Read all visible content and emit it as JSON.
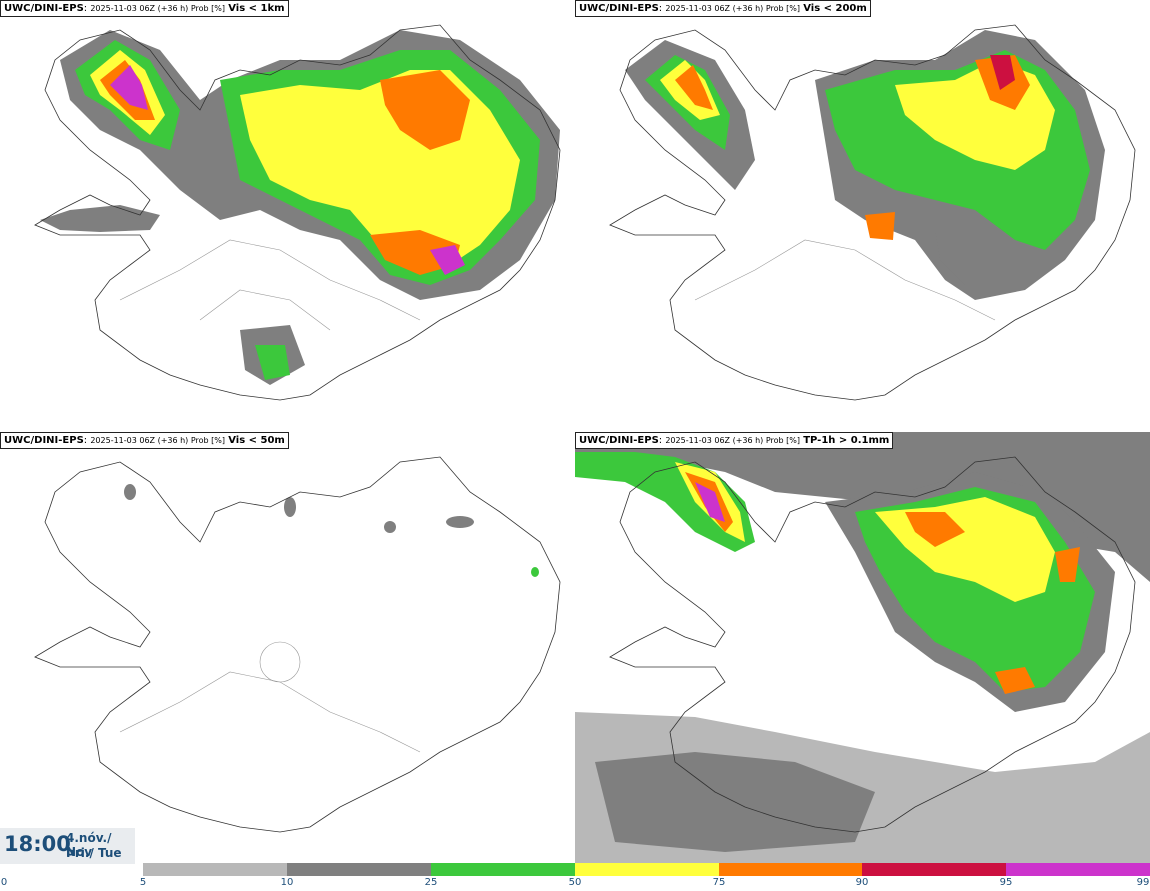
{
  "panels": [
    {
      "model": "UWC/DINI-EPS",
      "meta": "2025-11-03 06Z (+36 h) Prob [%]",
      "variable": "Vis < 1km"
    },
    {
      "model": "UWC/DINI-EPS",
      "meta": "2025-11-03 06Z (+36 h) Prob [%]",
      "variable": "Vis < 200m"
    },
    {
      "model": "UWC/DINI-EPS",
      "meta": "2025-11-03 06Z (+36 h) Prob [%]",
      "variable": "Vis < 50m"
    },
    {
      "model": "UWC/DINI-EPS",
      "meta": "2025-11-03 06Z (+36 h) Prob [%]",
      "variable": "TP-1h > 0.1mm"
    }
  ],
  "time": {
    "hour": "18:00",
    "date_line": "4.nóv./ Nov",
    "day_line": "Þri./ Tue"
  },
  "colorbar": {
    "labels": [
      "0",
      "5",
      "10",
      "25",
      "50",
      "75",
      "90",
      "95",
      "99"
    ],
    "colors": [
      "#ffffff",
      "#b8b8b8",
      "#7f7f7f",
      "#3cc83c",
      "#ffff3c",
      "#ff7a00",
      "#cc1040",
      "#cc33cc"
    ]
  }
}
